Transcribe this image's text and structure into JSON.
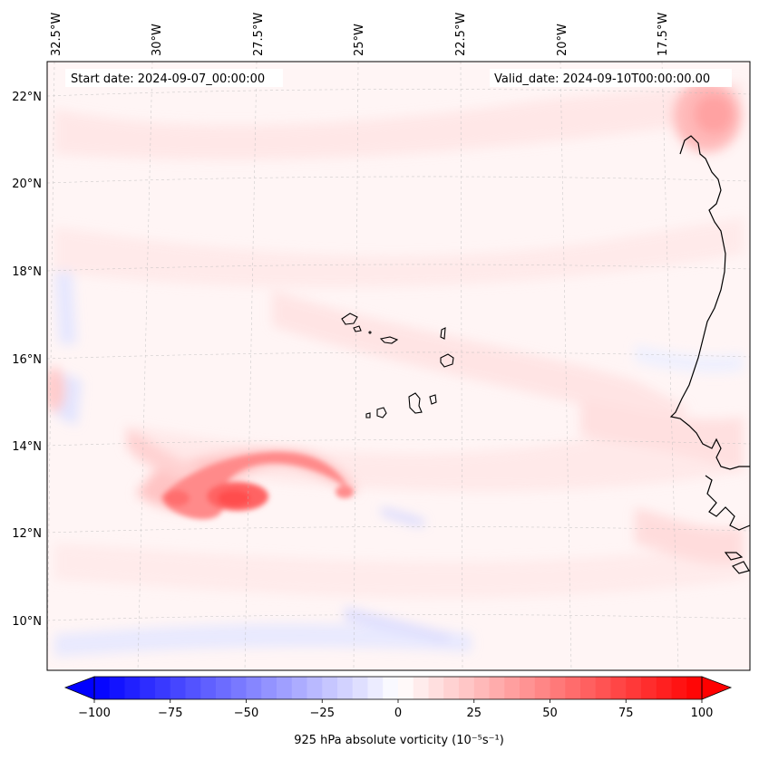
{
  "map": {
    "start_date": "Start date: 2024-09-07_00:00:00",
    "valid_date": "Valid_date: 2024-09-10T00:00:00.00",
    "lon_labels": [
      "32.5°W",
      "30°W",
      "27.5°W",
      "25°W",
      "22.5°W",
      "20°W",
      "17.5°W"
    ],
    "lat_labels": [
      "22°N",
      "20°N",
      "18°N",
      "16°N",
      "14°N",
      "12°N",
      "10°N"
    ],
    "variable": "925 hPa absolute vorticity",
    "units": "10^-5 s^-1"
  },
  "colorbar": {
    "label": "925 hPa absolute vorticity (10⁻⁵s⁻¹)",
    "min": -100,
    "max": 100,
    "ticks": [
      -100,
      -75,
      -50,
      -25,
      0,
      25,
      50,
      75,
      100
    ],
    "tick_labels": [
      "−100",
      "−75",
      "−50",
      "−25",
      "0",
      "25",
      "50",
      "75",
      "100"
    ],
    "levels": 40,
    "colors": {
      "negative": "#0000ff",
      "zero": "#ffffff",
      "positive": "#ff0000"
    }
  },
  "features": {
    "vortex_max": {
      "lat": 12.7,
      "lon": -27.3,
      "value": 60
    },
    "coast_max": {
      "lat": 21.4,
      "lon": -17.1,
      "value": 35
    },
    "islands": "Cabo Verde"
  }
}
